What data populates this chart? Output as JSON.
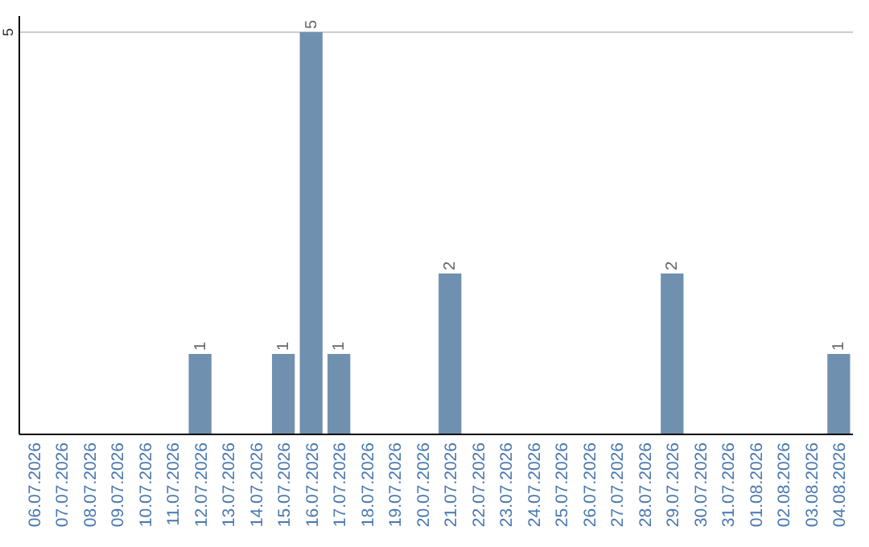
{
  "chart_data": {
    "type": "bar",
    "categories": [
      "06.07.2026",
      "07.07.2026",
      "08.07.2026",
      "09.07.2026",
      "10.07.2026",
      "11.07.2026",
      "12.07.2026",
      "13.07.2026",
      "14.07.2026",
      "15.07.2026",
      "16.07.2026",
      "17.07.2026",
      "18.07.2026",
      "19.07.2026",
      "20.07.2026",
      "21.07.2026",
      "22.07.2026",
      "23.07.2026",
      "24.07.2026",
      "25.07.2026",
      "26.07.2026",
      "27.07.2026",
      "28.07.2026",
      "29.07.2026",
      "30.07.2026",
      "31.07.2026",
      "01.08.2026",
      "02.08.2026",
      "03.08.2026",
      "04.08.2026"
    ],
    "values": [
      0,
      0,
      0,
      0,
      0,
      0,
      1,
      0,
      0,
      1,
      5,
      1,
      0,
      0,
      0,
      2,
      0,
      0,
      0,
      0,
      0,
      0,
      0,
      2,
      0,
      0,
      0,
      0,
      0,
      1
    ],
    "value_labels": [
      null,
      null,
      null,
      null,
      null,
      null,
      "1",
      null,
      null,
      "1",
      "5",
      "1",
      null,
      null,
      null,
      "2",
      null,
      null,
      null,
      null,
      null,
      null,
      null,
      "2",
      null,
      null,
      null,
      null,
      null,
      "1"
    ],
    "color": "#7090b0",
    "ylim": [
      0,
      5.2
    ],
    "yticks": [
      5
    ],
    "grid": "y"
  }
}
